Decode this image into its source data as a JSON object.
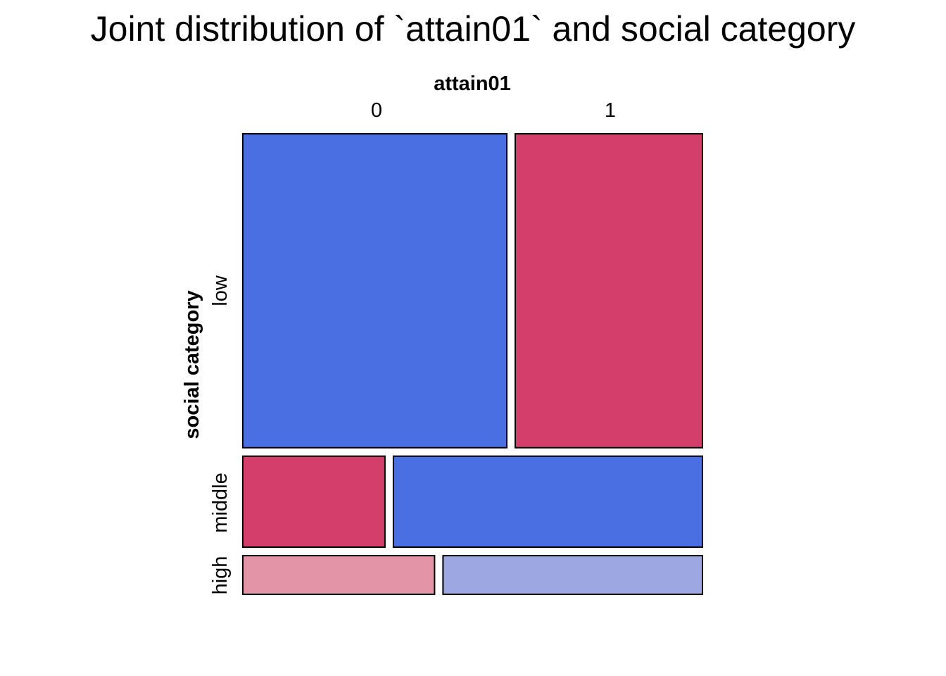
{
  "chart_data": {
    "type": "mosaic",
    "title": "Joint distribution of `attain01` and social category",
    "xlabel": "attain01",
    "ylabel": "social category",
    "x_categories": [
      "0",
      "1"
    ],
    "y_categories": [
      "low",
      "middle",
      "high"
    ],
    "row_proportions": [
      0.69,
      0.2,
      0.085
    ],
    "cells": [
      {
        "row": "low",
        "col": "0",
        "share": 0.585,
        "color": "#4A6FE3"
      },
      {
        "row": "low",
        "col": "1",
        "share": 0.415,
        "color": "#D33F6A"
      },
      {
        "row": "middle",
        "col": "0",
        "share": 0.315,
        "color": "#D33F6A"
      },
      {
        "row": "middle",
        "col": "1",
        "share": 0.685,
        "color": "#4A6FE3"
      },
      {
        "row": "high",
        "col": "0",
        "share": 0.425,
        "color": "#E394A6"
      },
      {
        "row": "high",
        "col": "1",
        "share": 0.575,
        "color": "#9DA8E2"
      }
    ]
  }
}
